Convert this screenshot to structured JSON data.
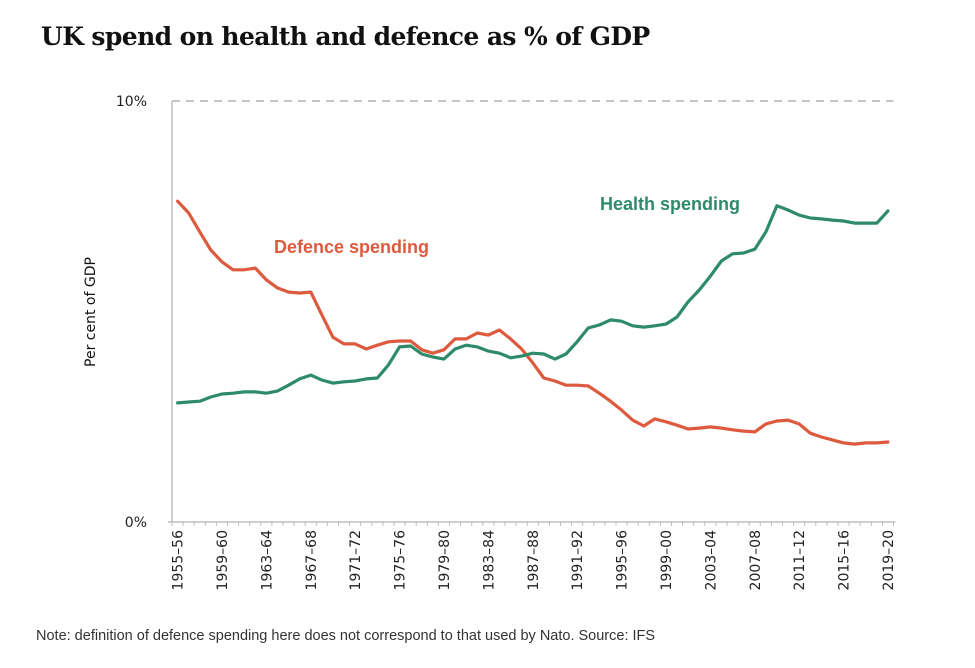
{
  "title": "UK spend on health and defence as % of GDP",
  "note": "Note: definition of defence spending here does not correspond to that used by Nato. Source: IFS",
  "colors": {
    "defence": "#de5a3f",
    "health": "#2e8b6a",
    "axis": "#bfbfbf",
    "grid": "#c4c4c4"
  },
  "chart_data": {
    "type": "line",
    "title": "UK spend on health and defence as % of GDP",
    "xlabel": "",
    "ylabel": "Per cent of GDP",
    "ylim": [
      0,
      10
    ],
    "yticks": [
      {
        "value": 0,
        "label": "0%"
      },
      {
        "value": 10,
        "label": "10%"
      }
    ],
    "grid": "dashed horizontal line at 10%",
    "legend": "inline labels",
    "x": [
      "1955–56",
      "1956–57",
      "1957–58",
      "1958–59",
      "1959–60",
      "1960–61",
      "1961–62",
      "1962–63",
      "1963–64",
      "1964–65",
      "1965–66",
      "1966–67",
      "1967–68",
      "1968–69",
      "1969–70",
      "1970–71",
      "1971–72",
      "1972–73",
      "1973–74",
      "1974–75",
      "1975–76",
      "1976–77",
      "1977–78",
      "1978–79",
      "1979–80",
      "1980–81",
      "1981–82",
      "1982–83",
      "1983–84",
      "1984–85",
      "1985–86",
      "1986–87",
      "1987–88",
      "1988–89",
      "1989–90",
      "1990–91",
      "1991–92",
      "1992–93",
      "1993–94",
      "1994–95",
      "1995–96",
      "1996–97",
      "1997–98",
      "1998–99",
      "1999–00",
      "2000–01",
      "2001–02",
      "2002–03",
      "2003–04",
      "2004–05",
      "2005–06",
      "2006–07",
      "2007–08",
      "2008–09",
      "2009–10",
      "2010–11",
      "2011–12",
      "2012–13",
      "2013–14",
      "2014–15",
      "2015–16",
      "2016–17",
      "2017–18",
      "2018–19",
      "2019–20"
    ],
    "xtick_labels": [
      "1955–56",
      "1959–60",
      "1963–64",
      "1967–68",
      "1971–72",
      "1975–76",
      "1979–80",
      "1983–84",
      "1987–88",
      "1991–92",
      "1995–96",
      "1999–00",
      "2003–04",
      "2007–08",
      "2011–12",
      "2015–16",
      "2019–20"
    ],
    "series": [
      {
        "name": "Defence spending",
        "label": "Defence spending",
        "color": "#de5a3f",
        "values": [
          7.62,
          7.34,
          6.89,
          6.46,
          6.18,
          5.99,
          5.99,
          6.03,
          5.75,
          5.56,
          5.46,
          5.44,
          5.46,
          4.92,
          4.39,
          4.23,
          4.23,
          4.11,
          4.2,
          4.28,
          4.3,
          4.3,
          4.09,
          4.01,
          4.09,
          4.35,
          4.35,
          4.49,
          4.44,
          4.56,
          4.35,
          4.11,
          3.78,
          3.42,
          3.35,
          3.25,
          3.25,
          3.23,
          3.06,
          2.87,
          2.66,
          2.42,
          2.28,
          2.45,
          2.38,
          2.3,
          2.21,
          2.23,
          2.26,
          2.23,
          2.19,
          2.16,
          2.14,
          2.33,
          2.4,
          2.42,
          2.33,
          2.11,
          2.02,
          1.95,
          1.88,
          1.85,
          1.88,
          1.88,
          1.9
        ]
      },
      {
        "name": "Health spending",
        "label": "Health spending",
        "color": "#2e8b6a",
        "values": [
          2.83,
          2.85,
          2.87,
          2.97,
          3.04,
          3.06,
          3.09,
          3.09,
          3.06,
          3.11,
          3.25,
          3.4,
          3.49,
          3.37,
          3.3,
          3.33,
          3.35,
          3.4,
          3.42,
          3.73,
          4.16,
          4.18,
          3.99,
          3.92,
          3.87,
          4.11,
          4.2,
          4.16,
          4.06,
          4.01,
          3.9,
          3.94,
          4.01,
          3.99,
          3.87,
          3.99,
          4.28,
          4.61,
          4.68,
          4.8,
          4.77,
          4.66,
          4.63,
          4.66,
          4.7,
          4.87,
          5.23,
          5.51,
          5.84,
          6.2,
          6.37,
          6.39,
          6.48,
          6.89,
          7.51,
          7.41,
          7.29,
          7.22,
          7.2,
          7.17,
          7.15,
          7.1,
          7.1,
          7.1,
          7.39
        ]
      }
    ]
  }
}
